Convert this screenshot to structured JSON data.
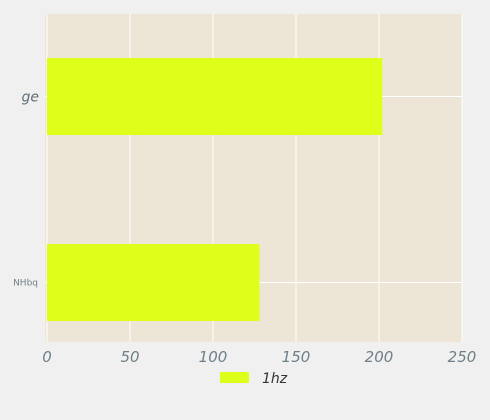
{
  "chart_data": {
    "type": "bar",
    "orientation": "horizontal",
    "categories": [
      "ge",
      "NHbq"
    ],
    "series": [
      {
        "name": "1hz",
        "values": [
          202,
          128
        ],
        "color": "#ddff1a"
      }
    ],
    "xlim": [
      0,
      250
    ],
    "xticks": [
      "0",
      "50",
      "100",
      "150",
      "200",
      "250"
    ],
    "grid": true,
    "legend_position": "bottom-center",
    "plot_background": "#ede6d6",
    "page_background": "#f0f0f0",
    "gridline_color": "#ffffff",
    "tick_label_color": "#6f7f88"
  }
}
